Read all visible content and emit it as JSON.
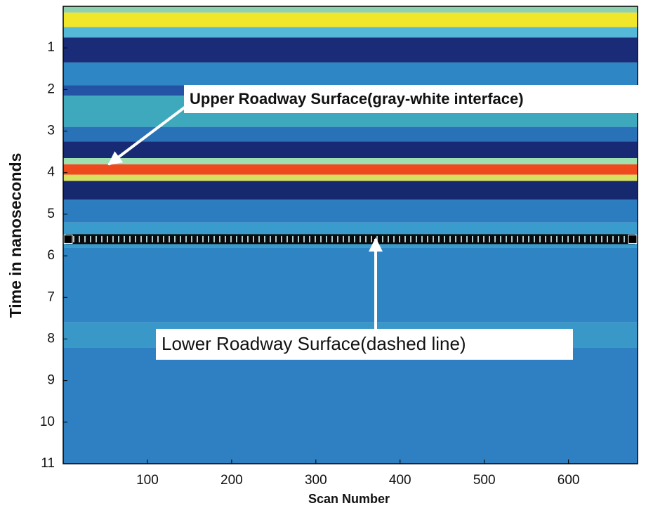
{
  "chart_data": {
    "type": "radargram",
    "xlabel": "Scan Number",
    "ylabel": "Time in nanoseconds",
    "xlim": [
      0,
      682
    ],
    "ylim": [
      0,
      11
    ],
    "y_inverted": true,
    "xticks": [
      100,
      200,
      300,
      400,
      500,
      600
    ],
    "yticks": [
      1,
      2,
      3,
      4,
      5,
      6,
      7,
      8,
      9,
      10,
      11
    ],
    "bands": [
      {
        "from": 0,
        "to": 0.15,
        "color": "#8fd0b0"
      },
      {
        "from": 0.15,
        "to": 0.5,
        "color": "#f2e62a"
      },
      {
        "from": 0.5,
        "to": 0.75,
        "color": "#56b8d8"
      },
      {
        "from": 0.75,
        "to": 1.35,
        "color": "#1a2c78"
      },
      {
        "from": 1.35,
        "to": 1.9,
        "color": "#2f86c4"
      },
      {
        "from": 1.9,
        "to": 2.15,
        "color": "#2452a4"
      },
      {
        "from": 2.15,
        "to": 2.9,
        "color": "#3ea8bc"
      },
      {
        "from": 2.9,
        "to": 3.25,
        "color": "#2a72b8"
      },
      {
        "from": 3.25,
        "to": 3.65,
        "color": "#182a74"
      },
      {
        "from": 3.65,
        "to": 3.8,
        "color": "#9ee0b0"
      },
      {
        "from": 3.8,
        "to": 4.05,
        "color": "#ee4a1e"
      },
      {
        "from": 4.05,
        "to": 4.2,
        "color": "#d8e060"
      },
      {
        "from": 4.2,
        "to": 4.65,
        "color": "#16286e"
      },
      {
        "from": 4.65,
        "to": 5.2,
        "color": "#2c7cc0"
      },
      {
        "from": 5.2,
        "to": 5.8,
        "color": "#3a9ccc"
      },
      {
        "from": 5.8,
        "to": 7.6,
        "color": "#2f84c4"
      },
      {
        "from": 7.6,
        "to": 8.2,
        "color": "#3a98c8"
      },
      {
        "from": 8.2,
        "to": 11,
        "color": "#2e80c2"
      }
    ],
    "dashed_line_y": 5.6,
    "annotations": [
      "Upper Roadway Surface(gray-white interface)",
      "Lower Roadway Surface(dashed line)"
    ]
  }
}
